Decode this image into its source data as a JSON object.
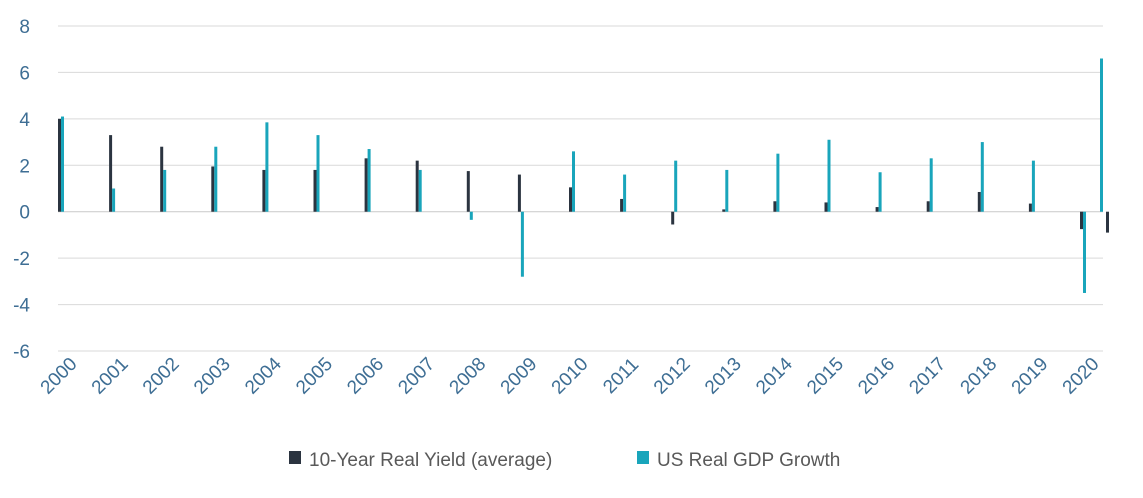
{
  "chart_data": {
    "type": "bar",
    "title": "",
    "xlabel": "",
    "ylabel": "",
    "ylim": [
      -6,
      8
    ],
    "yticks": [
      8,
      6,
      4,
      2,
      0,
      -2,
      -4,
      -6
    ],
    "ytick_labels": [
      "8",
      "6",
      "4",
      "2",
      "0",
      "-2",
      "-4",
      "-6"
    ],
    "grid": true,
    "legend_position": "bottom-center",
    "categories": [
      "2000",
      "2001",
      "2002",
      "2003",
      "2004",
      "2005",
      "2006",
      "2007",
      "2008",
      "2009",
      "2010",
      "2011",
      "2012",
      "2013",
      "2014",
      "2015",
      "2016",
      "2017",
      "2018",
      "2019",
      "2020"
    ],
    "series": [
      {
        "name": "10-Year Real Yield (average)",
        "color": "#2b3440",
        "values": [
          4.0,
          3.3,
          2.8,
          1.95,
          1.8,
          1.8,
          2.3,
          2.2,
          1.75,
          1.6,
          1.05,
          0.55,
          -0.55,
          0.1,
          0.45,
          0.4,
          0.2,
          0.45,
          0.85,
          0.35,
          -0.75
        ]
      },
      {
        "name": "US Real GDP Growth",
        "color": "#19a5bb",
        "values": [
          4.1,
          1.0,
          1.8,
          2.8,
          3.85,
          3.3,
          2.7,
          1.8,
          -0.35,
          -2.8,
          2.6,
          1.6,
          2.2,
          1.8,
          2.5,
          3.1,
          1.7,
          2.3,
          3.0,
          2.2,
          -3.5
        ]
      }
    ],
    "extra_bar": {
      "series_index": 0,
      "category_position": "after-2020",
      "value": -0.9,
      "gdp_value": 6.6
    }
  }
}
